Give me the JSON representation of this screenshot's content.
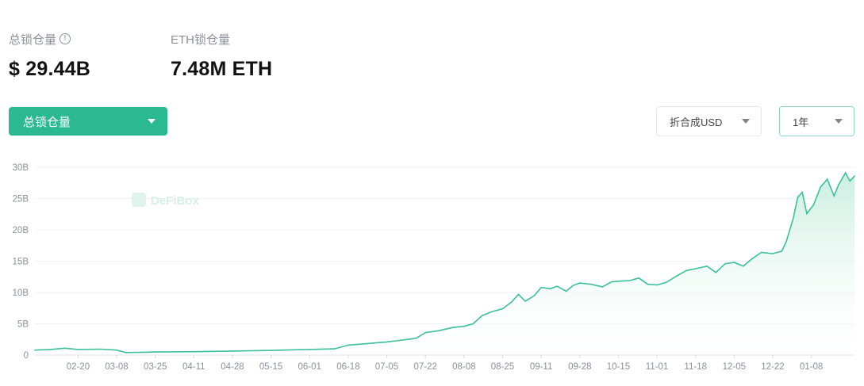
{
  "stats": {
    "tvl_label": "总锁仓量",
    "tvl_value": "$ 29.44B",
    "eth_label": "ETH锁仓量",
    "eth_value": "7.48M ETH",
    "info_icon": "info-circle-icon"
  },
  "controls": {
    "metric_select": "总锁仓量",
    "currency_select": "折合成USD",
    "range_select": "1年"
  },
  "watermark": "DeFiBox",
  "colors": {
    "accent": "#2bb991",
    "line": "#3cbf9d",
    "area_top": "#c8eedf",
    "grid": "#f0f1f3",
    "axis_text": "#8a8f99"
  },
  "chart_data": {
    "type": "area",
    "ylim": [
      0,
      30
    ],
    "y_ticks": [
      "0",
      "5B",
      "10B",
      "15B",
      "20B",
      "25B",
      "30B"
    ],
    "x_ticks": [
      "02-20",
      "03-08",
      "03-25",
      "04-11",
      "04-28",
      "05-15",
      "06-01",
      "06-18",
      "07-05",
      "07-22",
      "08-08",
      "08-25",
      "09-11",
      "09-28",
      "10-15",
      "11-01",
      "11-18",
      "12-05",
      "12-22",
      "01-08"
    ],
    "x_start_date": "02-01",
    "x_end_date": "01-27",
    "series": [
      {
        "name": "总锁仓量",
        "points": [
          [
            "02-01",
            0.8
          ],
          [
            "02-08",
            0.9
          ],
          [
            "02-14",
            1.1
          ],
          [
            "02-20",
            0.9
          ],
          [
            "03-01",
            0.95
          ],
          [
            "03-08",
            0.8
          ],
          [
            "03-12",
            0.4
          ],
          [
            "03-20",
            0.45
          ],
          [
            "03-25",
            0.5
          ],
          [
            "04-11",
            0.55
          ],
          [
            "04-28",
            0.65
          ],
          [
            "05-15",
            0.75
          ],
          [
            "06-01",
            0.9
          ],
          [
            "06-12",
            1.0
          ],
          [
            "06-18",
            1.6
          ],
          [
            "06-25",
            1.8
          ],
          [
            "07-05",
            2.1
          ],
          [
            "07-12",
            2.4
          ],
          [
            "07-18",
            2.7
          ],
          [
            "07-22",
            3.6
          ],
          [
            "07-28",
            3.9
          ],
          [
            "08-03",
            4.4
          ],
          [
            "08-08",
            4.6
          ],
          [
            "08-12",
            5.0
          ],
          [
            "08-16",
            6.3
          ],
          [
            "08-20",
            6.9
          ],
          [
            "08-25",
            7.4
          ],
          [
            "08-29",
            8.5
          ],
          [
            "09-01",
            9.7
          ],
          [
            "09-04",
            8.6
          ],
          [
            "09-08",
            9.5
          ],
          [
            "09-11",
            10.8
          ],
          [
            "09-15",
            10.6
          ],
          [
            "09-18",
            11.0
          ],
          [
            "09-22",
            10.2
          ],
          [
            "09-25",
            11.1
          ],
          [
            "09-28",
            11.5
          ],
          [
            "10-03",
            11.3
          ],
          [
            "10-08",
            10.9
          ],
          [
            "10-12",
            11.7
          ],
          [
            "10-15",
            11.8
          ],
          [
            "10-20",
            11.9
          ],
          [
            "10-24",
            12.3
          ],
          [
            "10-28",
            11.3
          ],
          [
            "11-01",
            11.2
          ],
          [
            "11-05",
            11.6
          ],
          [
            "11-10",
            12.7
          ],
          [
            "11-14",
            13.5
          ],
          [
            "11-18",
            13.8
          ],
          [
            "11-23",
            14.2
          ],
          [
            "11-27",
            13.2
          ],
          [
            "12-01",
            14.6
          ],
          [
            "12-05",
            14.8
          ],
          [
            "12-09",
            14.2
          ],
          [
            "12-13",
            15.4
          ],
          [
            "12-17",
            16.4
          ],
          [
            "12-22",
            16.2
          ],
          [
            "12-26",
            16.6
          ],
          [
            "12-28",
            18.2
          ],
          [
            "12-31",
            21.8
          ],
          [
            "01-02",
            25.2
          ],
          [
            "01-04",
            26.0
          ],
          [
            "01-06",
            22.6
          ],
          [
            "01-09",
            24.0
          ],
          [
            "01-12",
            26.8
          ],
          [
            "01-15",
            28.1
          ],
          [
            "01-18",
            25.4
          ],
          [
            "01-20",
            27.2
          ],
          [
            "01-23",
            29.1
          ],
          [
            "01-25",
            27.8
          ],
          [
            "01-27",
            28.6
          ]
        ]
      }
    ]
  }
}
